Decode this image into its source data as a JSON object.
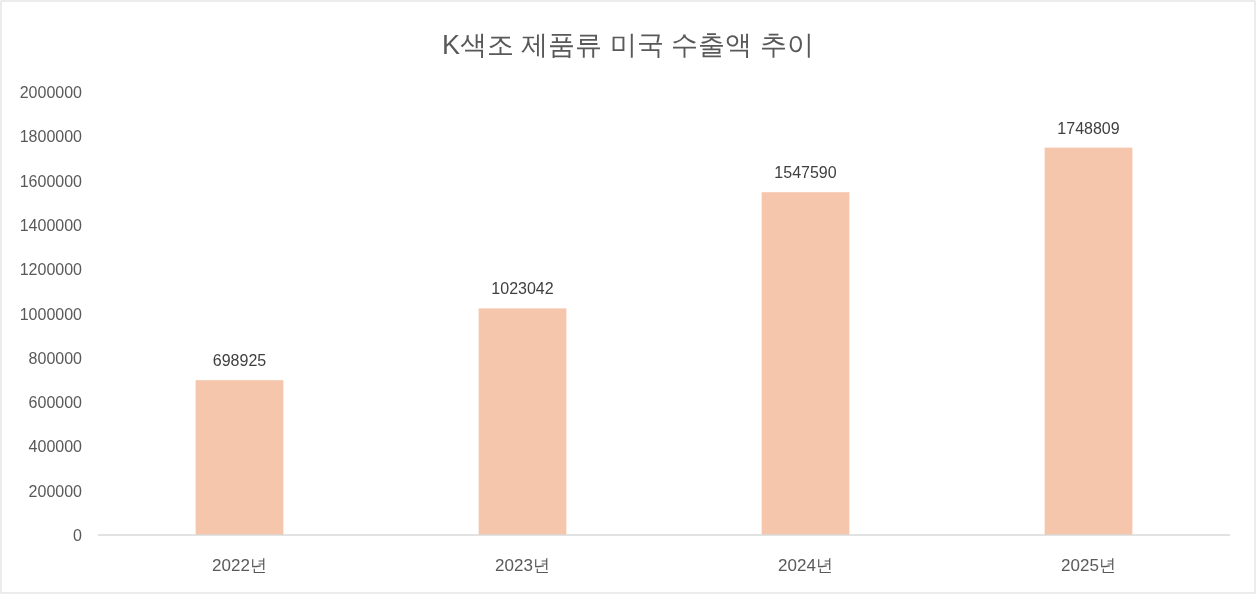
{
  "chart_data": {
    "type": "bar",
    "title": "K색조 제품류 미국 수출액 추이",
    "categories": [
      "2022년",
      "2023년",
      "2024년",
      "2025년"
    ],
    "values": [
      698925,
      1023042,
      1547590,
      1748809
    ],
    "color": "#f5c6ab",
    "ylim": [
      0,
      2000000
    ],
    "yticks": [
      0,
      200000,
      400000,
      600000,
      800000,
      1000000,
      1200000,
      1400000,
      1600000,
      1800000,
      2000000
    ],
    "grid": false,
    "data_labels": true
  }
}
